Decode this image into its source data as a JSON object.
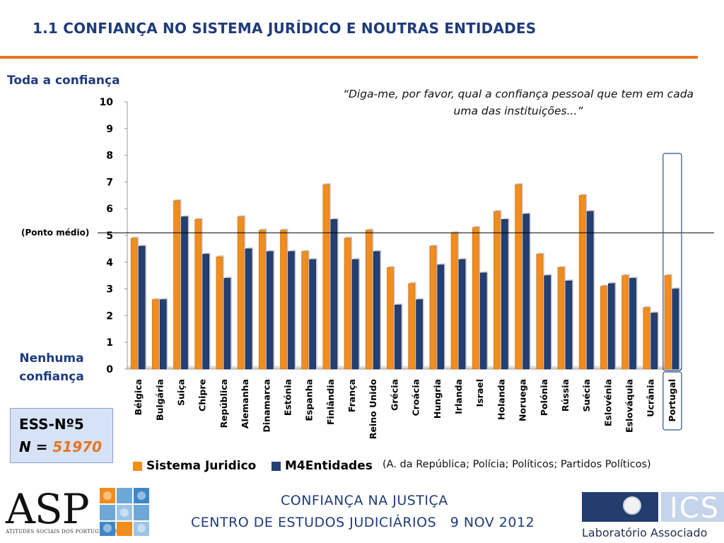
{
  "slide": {
    "title": "1.1 CONFIANÇA NO SISTEMA JURÍDICO E NOUTRAS ENTIDADES",
    "question": "“Diga-me, por favor, qual a confiança pessoal que tem em cada uma das instituições...”",
    "axis_top_label": "Toda a confiança",
    "axis_bottom_label": "Nenhuma confiança",
    "midpoint_label": "(Ponto médio)",
    "ess_title": "ESS-Nº5",
    "ess_n_prefix": "N = ",
    "ess_n_value": "51970",
    "legend_note": "(A. da República; Polícia; Políticos; Partidos Políticos)",
    "footer_line1": "CONFIANÇA NA JUSTIÇA",
    "footer_line2": "CENTRO DE ESTUDOS JUDICIÁRIOS   9 NOV 2012",
    "asp_logo_text": "ASP",
    "asp_logo_sub": "ATITUDES SOCIAIS DOS PORTUGUESES",
    "ics_logo_text": "ICS",
    "ics_caption": "Laboratório  Associado"
  },
  "colors": {
    "series1": "#f28c1e",
    "series2": "#243f73",
    "accent": "#e8741e",
    "title": "#1f3b7a"
  },
  "chart_data": {
    "type": "bar",
    "categories": [
      "Bélgica",
      "Bulgária",
      "Suiça",
      "Chipre",
      "República",
      "Alemanha",
      "Dinamarca",
      "Estónia",
      "Espanha",
      "Finlândia",
      "França",
      "Reino Unido",
      "Grécia",
      "Croácia",
      "Hungria",
      "Irlanda",
      "Israel",
      "Holanda",
      "Noruega",
      "Polónia",
      "Rússia",
      "Suécia",
      "Eslovénia",
      "Eslováquia",
      "Ucrânia",
      "Portugal"
    ],
    "series": [
      {
        "name": "Sistema Juridico",
        "values": [
          4.9,
          2.6,
          6.3,
          5.6,
          4.2,
          5.7,
          5.2,
          5.2,
          4.4,
          6.9,
          4.9,
          5.2,
          3.8,
          3.2,
          4.6,
          5.1,
          5.3,
          5.9,
          6.9,
          4.3,
          3.8,
          6.5,
          3.1,
          3.5,
          2.3,
          3.5
        ]
      },
      {
        "name": "M4Entidades",
        "values": [
          4.6,
          2.6,
          5.7,
          4.3,
          3.4,
          4.5,
          4.4,
          4.4,
          4.1,
          5.6,
          4.1,
          4.4,
          2.4,
          2.6,
          3.9,
          4.1,
          3.6,
          5.6,
          5.8,
          3.5,
          3.3,
          5.9,
          3.2,
          3.4,
          2.1,
          3.0
        ]
      }
    ],
    "ylim": [
      0,
      10
    ],
    "y_ticks": [
      0,
      1,
      2,
      3,
      4,
      5,
      6,
      7,
      8,
      9,
      10
    ],
    "reference_line": 5.1,
    "highlighted_category": "Portugal",
    "grid": false,
    "legend_position": "bottom"
  }
}
